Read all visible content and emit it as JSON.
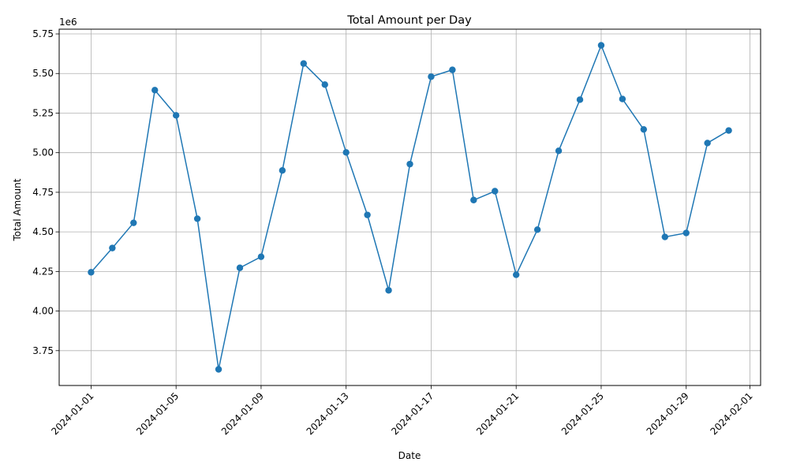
{
  "chart_data": {
    "type": "line",
    "title": "Total Amount per Day",
    "xlabel": "Date",
    "ylabel": "Total Amount",
    "y_offset_label": "1e6",
    "x": [
      "2024-01-01",
      "2024-01-02",
      "2024-01-03",
      "2024-01-04",
      "2024-01-05",
      "2024-01-06",
      "2024-01-07",
      "2024-01-08",
      "2024-01-09",
      "2024-01-10",
      "2024-01-11",
      "2024-01-12",
      "2024-01-13",
      "2024-01-14",
      "2024-01-15",
      "2024-01-16",
      "2024-01-17",
      "2024-01-18",
      "2024-01-19",
      "2024-01-20",
      "2024-01-21",
      "2024-01-22",
      "2024-01-23",
      "2024-01-24",
      "2024-01-25",
      "2024-01-26",
      "2024-01-27",
      "2024-01-28",
      "2024-01-29",
      "2024-01-30",
      "2024-01-31"
    ],
    "series": [
      {
        "values": [
          4245000,
          4398000,
          4557000,
          5395000,
          5236000,
          4583000,
          3632000,
          4273000,
          4343000,
          4888000,
          5563000,
          5430000,
          5002000,
          4607000,
          4131000,
          4928000,
          5480000,
          5523000,
          4701000,
          4757000,
          4229000,
          4514000,
          5012000,
          5335000,
          5678000,
          5339000,
          5147000,
          4468000,
          4493000,
          5061000,
          5140000
        ],
        "color": "#1f77b4"
      }
    ],
    "x_tick_labels": [
      "2024-01-01",
      "2024-01-05",
      "2024-01-09",
      "2024-01-13",
      "2024-01-17",
      "2024-01-21",
      "2024-01-25",
      "2024-01-29",
      "2024-02-01"
    ],
    "y_tick_labels": [
      "3.75",
      "4.00",
      "4.25",
      "4.50",
      "4.75",
      "5.00",
      "5.25",
      "5.50",
      "5.75"
    ],
    "xlim": [
      "2023-12-30T12:00",
      "2024-02-01T12:00"
    ],
    "ylim": [
      3530000,
      5780000
    ],
    "grid": true,
    "legend": "none"
  }
}
